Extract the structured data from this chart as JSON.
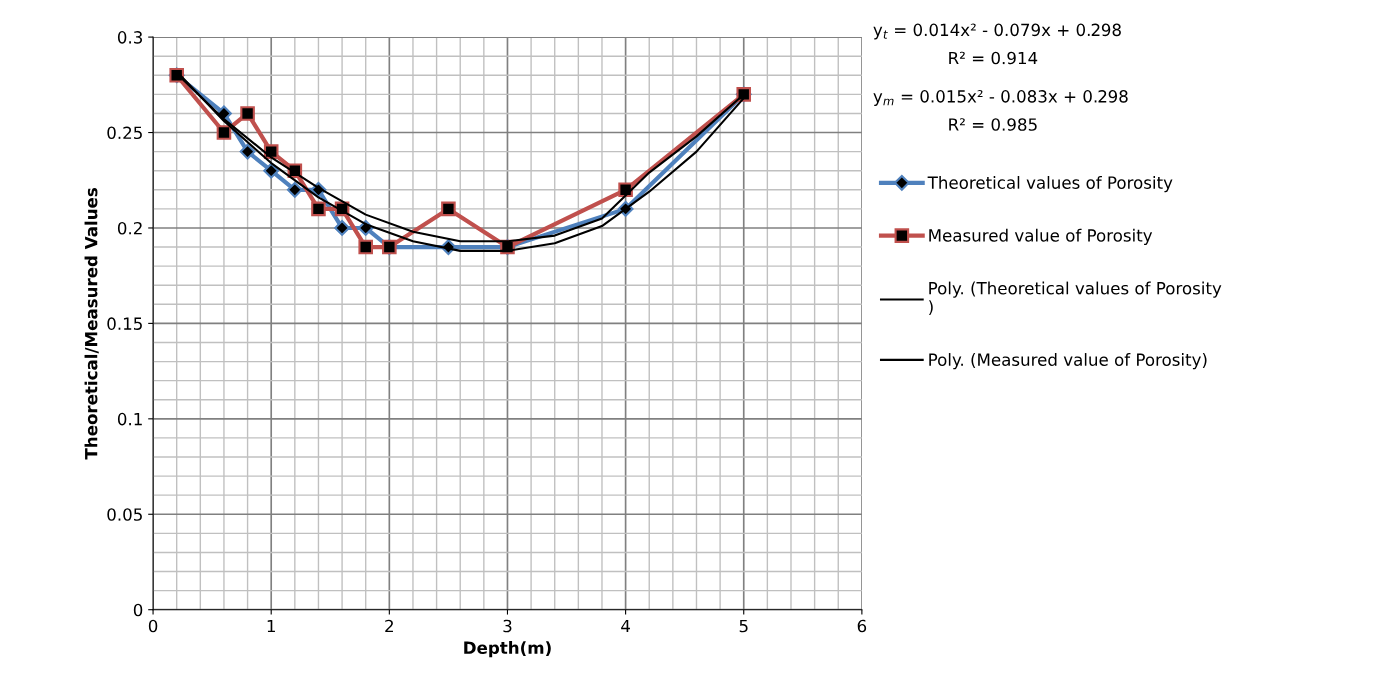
{
  "chart_data": {
    "type": "line",
    "xlabel": "Depth(m)",
    "ylabel": "Theoretical/Measured Values",
    "xlim": [
      0,
      6
    ],
    "xticks": [
      0,
      1,
      2,
      3,
      4,
      5,
      6
    ],
    "ylim": [
      0,
      0.3
    ],
    "yticks": [
      0,
      0.05,
      0.1,
      0.15,
      0.2,
      0.25,
      0.3
    ],
    "grid": true,
    "legend": "right",
    "line_style": "solid",
    "x": [
      0.2,
      0.6,
      0.8,
      1.0,
      1.2,
      1.4,
      1.6,
      1.8,
      2.0,
      2.5,
      3.0,
      4.0,
      5.0
    ],
    "series": [
      {
        "name": "Theoretical values of Porosity",
        "color": "#4f81bd",
        "marker": "diamond",
        "values": [
          0.28,
          0.26,
          0.24,
          0.23,
          0.22,
          0.22,
          0.2,
          0.2,
          0.19,
          0.19,
          0.19,
          0.21,
          0.27
        ]
      },
      {
        "name": "Measured value of Porosity",
        "color": "#c0504d",
        "marker": "square",
        "values": [
          0.28,
          0.25,
          0.26,
          0.24,
          0.23,
          0.21,
          0.21,
          0.19,
          0.19,
          0.21,
          0.19,
          0.22,
          0.27
        ]
      },
      {
        "name": "Poly. (Theoretical values of Porosity\n)",
        "color": "#000000",
        "marker": "none",
        "x": [
          0.2,
          0.6,
          1.0,
          1.4,
          1.8,
          2.2,
          2.6,
          3.0,
          3.4,
          3.8,
          4.2,
          4.6,
          5.0
        ],
        "values": [
          0.282,
          0.256,
          0.234,
          0.216,
          0.202,
          0.193,
          0.188,
          0.188,
          0.192,
          0.201,
          0.219,
          0.24,
          0.268
        ]
      },
      {
        "name": "Poly. (Measured value of Porosity)",
        "color": "#000000",
        "marker": "none",
        "x": [
          0.2,
          0.6,
          1.0,
          1.4,
          1.8,
          2.2,
          2.6,
          3.0,
          3.4,
          3.8,
          4.2,
          4.6,
          5.0
        ],
        "values": [
          0.281,
          0.257,
          0.237,
          0.221,
          0.207,
          0.198,
          0.193,
          0.193,
          0.196,
          0.205,
          0.229,
          0.248,
          0.27
        ]
      }
    ],
    "annotations": [
      "y$_{t}$ = 0.014x² - 0.079x + 0.298",
      "R² = 0.914",
      "y$_{m}$ = 0.015x² - 0.083x + 0.298",
      "R² = 0.985"
    ]
  }
}
